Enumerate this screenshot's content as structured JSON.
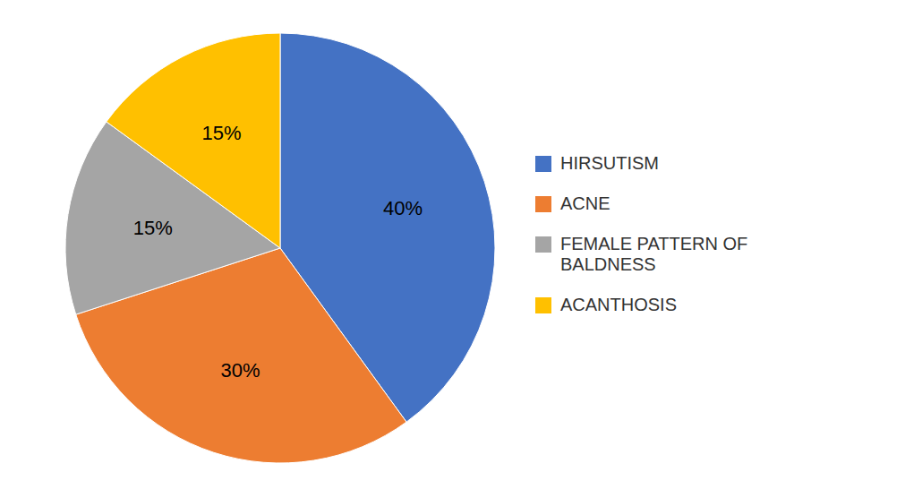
{
  "chart_data": {
    "type": "pie",
    "categories": [
      "HIRSUTISM",
      "ACNE",
      "FEMALE PATTERN OF\nBALDNESS",
      "ACANTHOSIS"
    ],
    "values": [
      40,
      30,
      15,
      15
    ],
    "value_labels": [
      "40%",
      "30%",
      "15%",
      "15%"
    ],
    "colors": [
      "#4472C4",
      "#ED7D31",
      "#A5A5A5",
      "#FFC000"
    ],
    "data_labels": true,
    "legend": "right"
  }
}
